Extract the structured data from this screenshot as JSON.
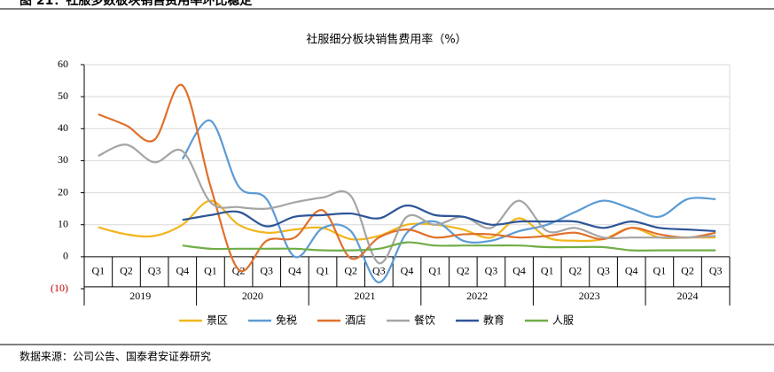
{
  "header": "图 21：社服多数板块销售费用率环比稳定",
  "source": "数据来源：公司公告、国泰君安证券研究",
  "chart_data": {
    "type": "line",
    "title": "社服细分板块销售费用率（%）",
    "categories": [
      "Q1",
      "Q2",
      "Q3",
      "Q4",
      "Q1",
      "Q2",
      "Q3",
      "Q4",
      "Q1",
      "Q2",
      "Q3",
      "Q4",
      "Q1",
      "Q2",
      "Q3",
      "Q4",
      "Q1",
      "Q2",
      "Q3",
      "Q4",
      "Q1",
      "Q2",
      "Q3"
    ],
    "groups": [
      "2019",
      "2020",
      "2021",
      "2022",
      "2023",
      "2024"
    ],
    "ylim": [
      -10,
      60
    ],
    "yticks": [
      {
        "value": -10,
        "label": "(10)"
      },
      0,
      10,
      20,
      30,
      40,
      50,
      60
    ],
    "grid": true,
    "legend": "bottom",
    "series": [
      {
        "name": "景区",
        "color": "#f2b51c",
        "values": [
          9.2,
          7,
          6.5,
          10,
          17.5,
          10,
          7.5,
          8.5,
          9,
          5.5,
          6.5,
          10,
          10,
          8.5,
          6,
          12,
          6,
          5,
          5.5,
          9,
          6,
          6,
          6
        ]
      },
      {
        "name": "免税",
        "color": "#5b9bd5",
        "values": [
          null,
          null,
          null,
          30.5,
          42.5,
          22,
          18,
          0,
          9,
          8,
          -8,
          7.5,
          11,
          5,
          5,
          8,
          10,
          14,
          17.5,
          15,
          12.5,
          18,
          18
        ]
      },
      {
        "name": "酒店",
        "color": "#e0702a",
        "values": [
          44.5,
          41,
          36.5,
          53.5,
          22,
          -4,
          5,
          6,
          14.5,
          -0.5,
          6,
          8.5,
          6,
          7,
          7,
          6,
          6.5,
          7.5,
          5.5,
          9,
          7,
          6,
          7.5
        ]
      },
      {
        "name": "餐饮",
        "color": "#a5a5a5",
        "values": [
          31.5,
          35,
          29.5,
          33,
          17,
          15.5,
          15,
          17,
          18.5,
          19,
          -2,
          12.5,
          10,
          12.5,
          9,
          17.5,
          8,
          9,
          6,
          6,
          6,
          6,
          6.5
        ]
      },
      {
        "name": "教育",
        "color": "#2f5597",
        "values": [
          null,
          null,
          null,
          11.5,
          13,
          14,
          9.5,
          12.5,
          13,
          13.5,
          12,
          16,
          13,
          12.5,
          10,
          11,
          11,
          11,
          9,
          11,
          9,
          8.5,
          8
        ]
      },
      {
        "name": "人服",
        "color": "#70ad47",
        "values": [
          null,
          null,
          null,
          3.5,
          2.5,
          2.5,
          2.5,
          2.5,
          2,
          2,
          2.5,
          4.5,
          3.5,
          3.5,
          3.5,
          3.5,
          3,
          3,
          3,
          2,
          2,
          2,
          2
        ]
      }
    ]
  }
}
